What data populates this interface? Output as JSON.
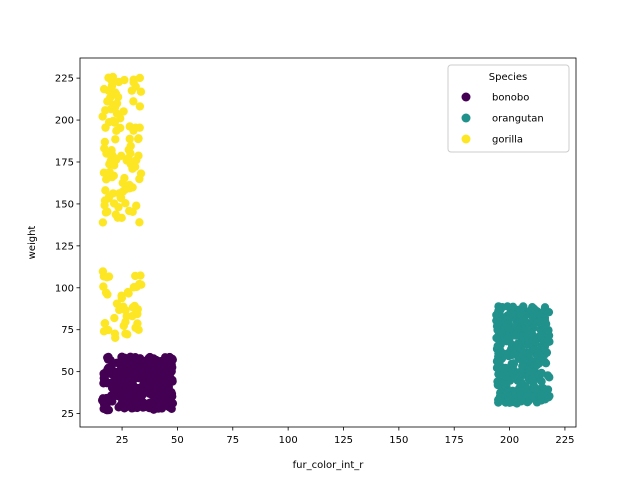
{
  "chart_data": {
    "type": "scatter",
    "xlabel": "fur_color_int_r",
    "ylabel": "weight",
    "xlim": [
      6,
      230
    ],
    "ylim": [
      17,
      237
    ],
    "xticks": [
      25,
      50,
      75,
      100,
      125,
      150,
      175,
      200,
      225
    ],
    "yticks": [
      25,
      50,
      75,
      100,
      125,
      150,
      175,
      200,
      225
    ],
    "grid": false,
    "legend": {
      "title": "Species",
      "placement": "top-right"
    },
    "series": [
      {
        "name": "bonobo",
        "color": "#440154",
        "x_range": [
          16,
          48
        ],
        "y_range": [
          27,
          59
        ],
        "count": 340,
        "seed": 11
      },
      {
        "name": "orangutan",
        "color": "#21918c",
        "x_range": [
          194,
          218
        ],
        "y_range": [
          31,
          89
        ],
        "count": 340,
        "seed": 23
      },
      {
        "name": "gorilla",
        "color": "#fde725",
        "x_range": [
          16,
          34
        ],
        "y_ranges": [
          [
            70,
            110
          ],
          [
            138,
            226
          ]
        ],
        "count": 150,
        "seed": 37
      }
    ]
  }
}
